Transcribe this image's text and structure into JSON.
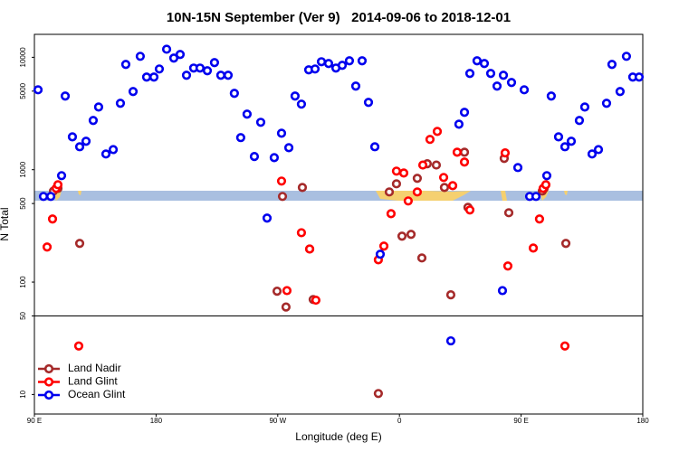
{
  "chart_data": {
    "type": "scatter",
    "title": "10N-15N September (Ver 9)   2014-09-06 to 2018-12-01",
    "x_label": "Longitude (deg E)",
    "y_label": "N Total",
    "xlim": [
      90,
      540
    ],
    "xticks": [
      {
        "value": 90,
        "label": "90 E"
      },
      180,
      {
        "value": 270,
        "label": "90 W"
      },
      {
        "value": 360,
        "label": "0"
      },
      {
        "value": 450,
        "label": "90 E"
      },
      {
        "value": 540,
        "label": "180"
      }
    ],
    "ylim": [
      6.7,
      16000
    ],
    "ylog": true,
    "yticks": [
      10,
      50,
      100,
      500,
      1000,
      5000,
      10000
    ],
    "hline": 50,
    "legend": "bottomleft",
    "series": [
      {
        "name": "Land Nadir",
        "color": "#a52a2a",
        "x": [
          104.1,
          107.4,
          123.5,
          269.5,
          273.5,
          276.1,
          288.2,
          293.6,
          296.2,
          344.4,
          352.5,
          357.8,
          361.9,
          368.6,
          373.2,
          376.6,
          380.6,
          387.3,
          393.3,
          398.0,
          408.1,
          410.7,
          437.5,
          440.9,
          465.7,
          467.0,
          483.1
        ],
        "values": [
          646,
          682,
          221,
          83,
          578,
          60,
          695,
          197,
          70,
          10.2,
          634,
          749,
          256,
          266,
          838,
          164,
          1130,
          1100,
          695,
          77,
          1430,
          462,
          1260,
          414,
          646,
          682,
          221
        ]
      },
      {
        "name": "Land Glint",
        "color": "#ff0000",
        "x": [
          99.4,
          103.4,
          106.1,
          107.4,
          122.8,
          272.8,
          276.8,
          287.5,
          293.6,
          298.2,
          344.4,
          348.5,
          353.8,
          357.8,
          363.2,
          366.5,
          373.2,
          377.3,
          382.6,
          388.0,
          392.7,
          399.4,
          402.7,
          408.1,
          412.1,
          438.2,
          440.2,
          459.0,
          463.6,
          466.3,
          468.3,
          482.4
        ],
        "values": [
          205,
          364,
          682,
          735,
          27,
          792,
          84,
          275,
          197,
          69,
          158,
          209,
          406,
          971,
          935,
          527,
          634,
          1100,
          1860,
          2190,
          853,
          721,
          1430,
          1170,
          438,
          1410,
          139,
          201,
          364,
          682,
          735,
          27
        ]
      },
      {
        "name": "Ocean Glint",
        "color": "#0000ee",
        "x": [
          92.7,
          96.7,
          102.1,
          110.1,
          112.8,
          118.1,
          123.5,
          128.2,
          133.5,
          137.5,
          142.9,
          148.3,
          153.6,
          157.6,
          163.0,
          168.3,
          173.0,
          178.4,
          182.4,
          187.8,
          193.1,
          197.8,
          202.5,
          207.8,
          212.5,
          217.9,
          223.2,
          227.9,
          233.3,
          237.9,
          242.6,
          247.3,
          252.7,
          257.4,
          262.1,
          267.4,
          272.8,
          278.2,
          282.8,
          287.5,
          292.9,
          297.6,
          302.3,
          307.6,
          313.0,
          317.7,
          323.0,
          327.7,
          332.4,
          337.1,
          341.8,
          345.8,
          398.0,
          404.0,
          408.1,
          412.1,
          417.4,
          422.8,
          427.5,
          432.2,
          436.2,
          436.9,
          442.9,
          447.6,
          452.3,
          456.3,
          461.0,
          469.0,
          472.3,
          477.7,
          482.4,
          487.1,
          493.1,
          497.1,
          502.5,
          507.2,
          513.2,
          517.2,
          523.2,
          527.9,
          532.6,
          537.3
        ],
        "values": [
          5140,
          578,
          578,
          885,
          4520,
          1960,
          1600,
          1790,
          2740,
          3610,
          1380,
          1510,
          3900,
          8640,
          4960,
          10200,
          6670,
          6670,
          7870,
          11800,
          9840,
          10600,
          6920,
          8020,
          8020,
          7590,
          8970,
          6920,
          6920,
          4780,
          1930,
          3120,
          1310,
          2640,
          371,
          1280,
          2110,
          1570,
          4520,
          3830,
          7730,
          7870,
          9130,
          8800,
          8020,
          8480,
          9310,
          5540,
          9310,
          3970,
          1600,
          177,
          30,
          2540,
          3240,
          7180,
          9310,
          8800,
          7180,
          5540,
          84,
          6920,
          5970,
          1045,
          5140,
          578,
          578,
          885,
          4520,
          1960,
          1600,
          1790,
          2740,
          3610,
          1380,
          1510,
          3900,
          8640,
          4960,
          10200,
          6670,
          6670
        ]
      }
    ]
  }
}
